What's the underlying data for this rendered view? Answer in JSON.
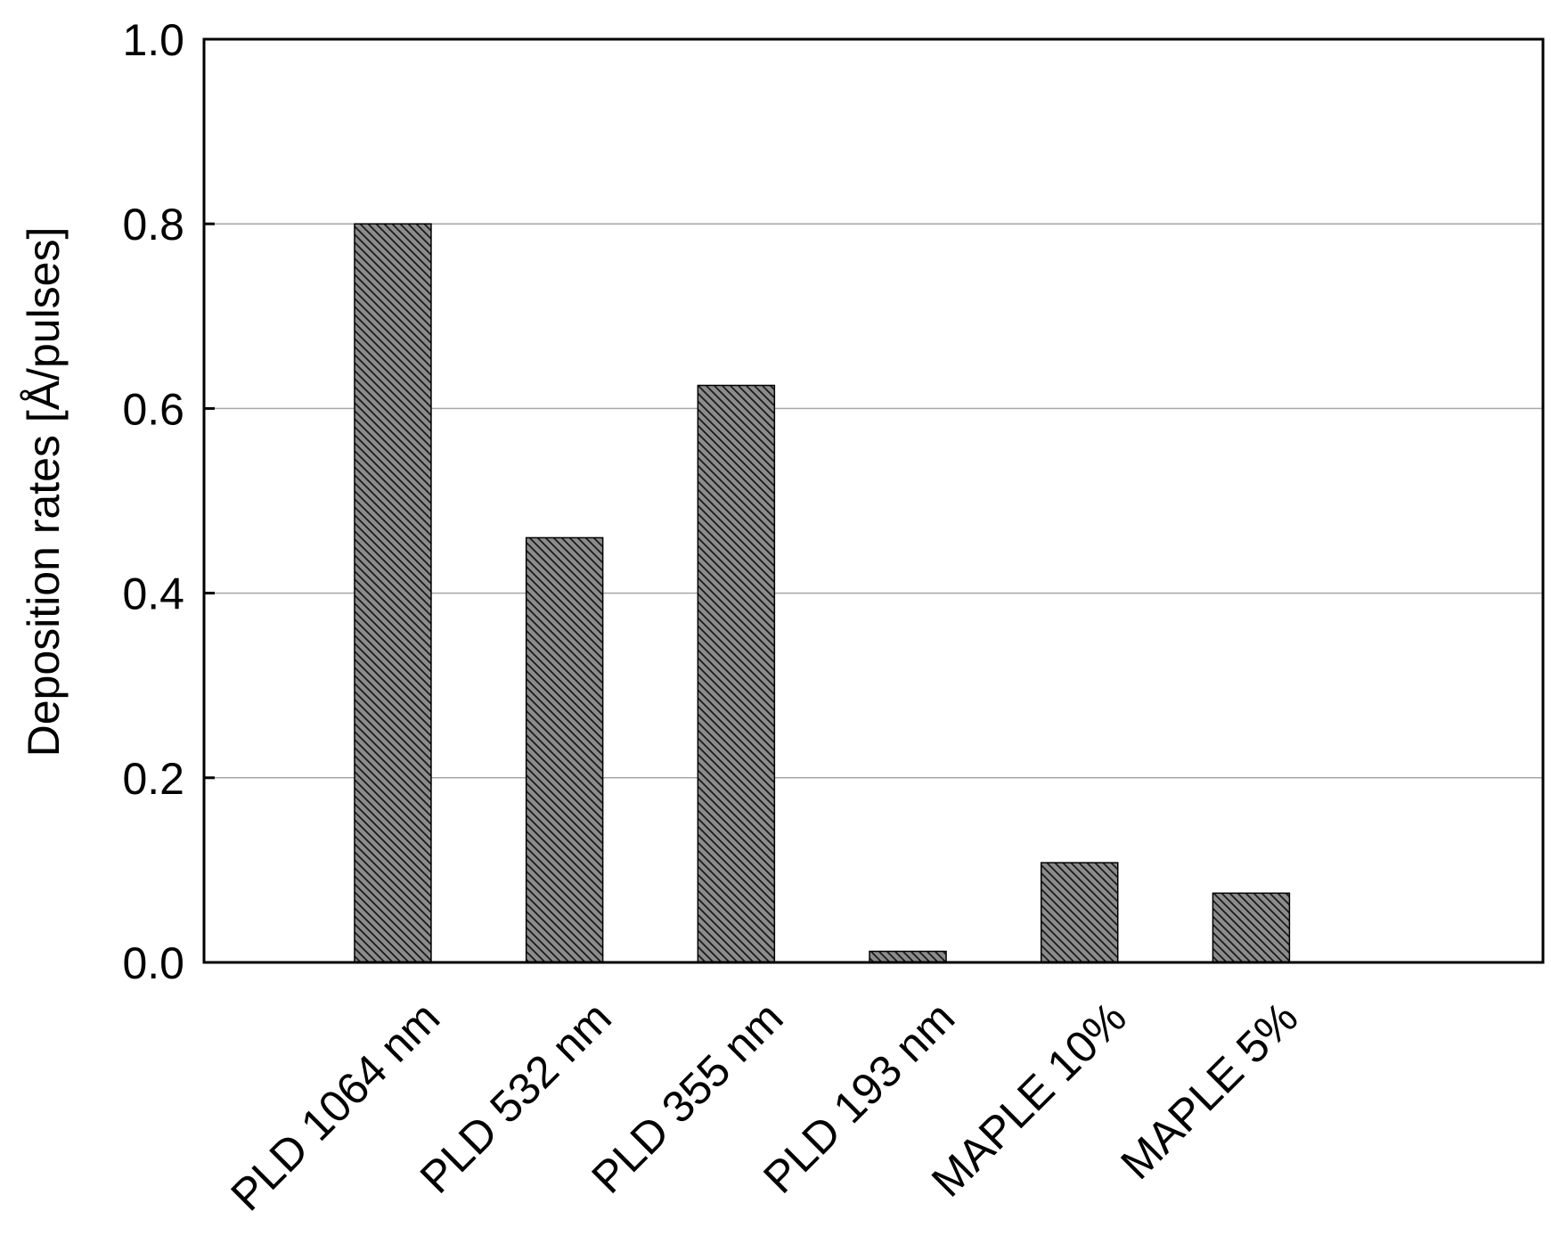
{
  "chart_data": {
    "type": "bar",
    "title": "",
    "xlabel": "",
    "ylabel": "Deposition rates [Å/pulses]",
    "categories": [
      "PLD 1064 nm",
      "PLD 532 nm",
      "PLD 355 nm",
      "PLD 193 nm",
      "MAPLE 10%",
      "MAPLE 5%"
    ],
    "values": [
      0.8,
      0.46,
      0.625,
      0.012,
      0.108,
      0.075
    ],
    "ylim": [
      0.0,
      1.0
    ],
    "yticks": [
      "0.0",
      "0.2",
      "0.4",
      "0.6",
      "0.8",
      "1.0"
    ],
    "grid": "horizontal",
    "legend": "none",
    "bar_pattern": "diagonal-hatch",
    "colors": {
      "bar_fill": "#8c8c8c",
      "hatch": "#1a1a1a",
      "grid": "#a6a6a6",
      "axis": "#000000"
    }
  }
}
